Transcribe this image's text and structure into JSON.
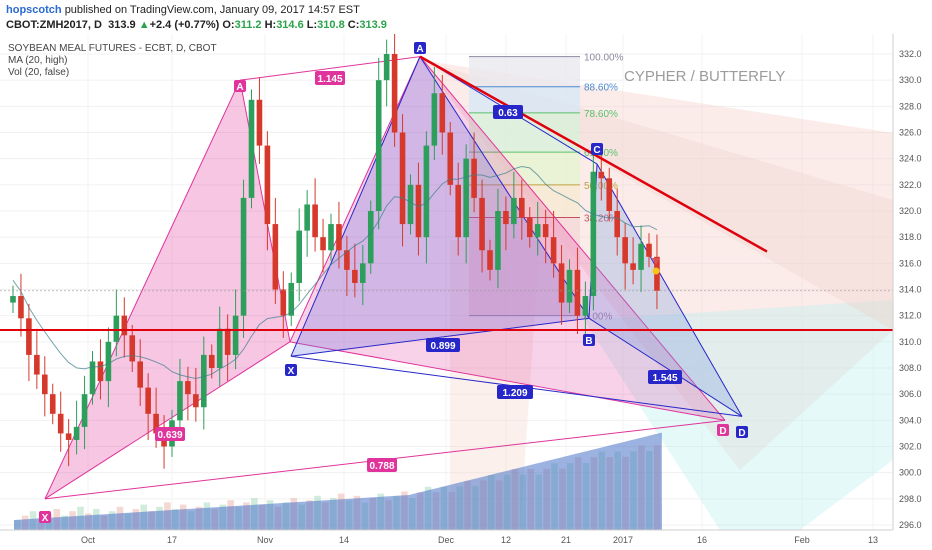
{
  "header": {
    "author": "hopscotch",
    "published": "published on TradingView.com, January 09, 2017 14:57 EST",
    "symbol": "CBOT:ZMH2017, D",
    "last": "313.9",
    "change": "+2.4 (+0.77%)",
    "o_label": "O:",
    "o": "311.2",
    "h_label": "H:",
    "h": "314.6",
    "l_label": "L:",
    "l": "310.8",
    "c_label": "C:",
    "c": "313.9"
  },
  "legend": {
    "title": "SOYBEAN MEAL FUTURES - ECBT, D, CBOT",
    "ma": "MA (20, high)",
    "vol": "Vol (20, false)"
  },
  "annotation": "CYPHER / BUTTERFLY",
  "colors": {
    "up": "#2e9e5c",
    "down": "#d6392b",
    "support": "#e0000d",
    "resist": "#e0000d",
    "pink": "#e0339b",
    "blue": "#2727c9"
  },
  "chart_data": {
    "type": "candlestick",
    "y_axis": {
      "ticks": [
        296,
        298,
        300,
        302,
        304,
        306,
        308,
        310,
        312,
        314,
        316,
        318,
        320,
        322,
        324,
        326,
        328,
        330,
        332
      ],
      "range": [
        295.5,
        333.5
      ],
      "position": "right"
    },
    "x_axis": {
      "ticks": [
        "Oct",
        "17",
        "Nov",
        "14",
        "Dec",
        "12",
        "21",
        "2017",
        "16",
        "Feb",
        "13"
      ]
    },
    "price_badges": {
      "last": "313.9",
      "support": "310.9"
    },
    "support_level": 310.9,
    "closes": [
      313.5,
      311.8,
      309,
      307.5,
      306,
      304.5,
      303,
      302.5,
      303.5,
      306,
      308.5,
      307,
      310,
      312,
      310.5,
      308.5,
      306.5,
      304.5,
      303,
      302,
      304,
      307,
      306,
      305,
      309,
      308,
      311,
      309,
      312,
      321,
      328.5,
      325,
      319,
      314,
      312,
      314.5,
      318.5,
      320.5,
      318,
      317,
      319,
      317,
      315.5,
      314.5,
      316,
      320,
      330,
      332,
      326,
      319,
      322,
      318,
      325,
      329,
      326,
      322,
      318,
      324,
      321,
      317,
      315.5,
      320,
      319,
      321,
      319.5,
      318,
      319,
      318,
      316,
      313,
      315.5,
      312,
      313.5,
      323,
      322.5,
      320,
      318,
      316,
      315.5,
      317.5,
      316.5,
      313.9
    ],
    "volume_profile": "rising toward January",
    "xabcd_patterns": [
      {
        "name": "Pink Butterfly",
        "points": {
          "X": 298,
          "A": 330,
          "B": 310,
          "C": 331.8,
          "D": 304
        },
        "ratios": [
          "1.145",
          "0.639",
          "0.788",
          "1.209"
        ]
      },
      {
        "name": "Blue Cypher",
        "points": {
          "X": 310,
          "A": 331.8,
          "B": 312,
          "C": 323.6,
          "D": 304.2
        },
        "ratios": [
          "0.899",
          "0.63",
          "1.545"
        ]
      }
    ],
    "fibonacci_levels": [
      {
        "label": "100.00%",
        "price": 331.8
      },
      {
        "label": "88.60%",
        "price": 329.5
      },
      {
        "label": "78.60%",
        "price": 327.5
      },
      {
        "label": "61.80%",
        "price": 324.5
      },
      {
        "label": "50.00%",
        "price": 322
      },
      {
        "label": "38.20%",
        "price": 319.5
      },
      {
        "label": "0.00%",
        "price": 312
      }
    ],
    "trendline": {
      "from": 331.8,
      "to": 317,
      "color": "red"
    }
  }
}
